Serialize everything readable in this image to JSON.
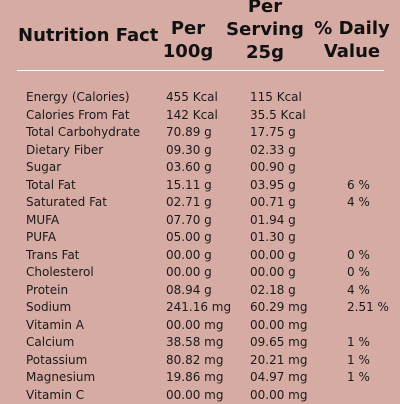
{
  "header": {
    "title": "Nutrition Fact",
    "per100_line1": "Per",
    "per100_line2": "100g",
    "serving_line1": "Per",
    "serving_line2": "Serving",
    "serving_line3": "25g",
    "daily_line1": "% Daily",
    "daily_line2": "Value"
  },
  "rows": [
    {
      "name": "Energy (Calories)",
      "per100": "455 Kcal",
      "serving": "115 Kcal",
      "daily": ""
    },
    {
      "name": "Calories From Fat",
      "per100": "142 Kcal",
      "serving": "35.5 Kcal",
      "daily": ""
    },
    {
      "name": "Total Carbohydrate",
      "per100": "70.89 g",
      "serving": "17.75 g",
      "daily": ""
    },
    {
      "name": "Dietary Fiber",
      "per100": "09.30 g",
      "serving": "02.33 g",
      "daily": ""
    },
    {
      "name": "Sugar",
      "per100": "03.60 g",
      "serving": "00.90 g",
      "daily": ""
    },
    {
      "name": "Total Fat",
      "per100": "15.11 g",
      "serving": "03.95 g",
      "daily": "6 %"
    },
    {
      "name": "Saturated Fat",
      "per100": "02.71 g",
      "serving": "00.71 g",
      "daily": "4 %"
    },
    {
      "name": "MUFA",
      "per100": "07.70 g",
      "serving": "01.94 g",
      "daily": ""
    },
    {
      "name": "PUFA",
      "per100": "05.00 g",
      "serving": "01.30 g",
      "daily": ""
    },
    {
      "name": "Trans Fat",
      "per100": "00.00 g",
      "serving": "00.00 g",
      "daily": "0 %"
    },
    {
      "name": "Cholesterol",
      "per100": "00.00 g",
      "serving": "00.00 g",
      "daily": "0 %"
    },
    {
      "name": "Protein",
      "per100": "08.94 g",
      "serving": "02.18 g",
      "daily": "4 %"
    },
    {
      "name": "Sodium",
      "per100": "241.16 mg",
      "serving": "60.29 mg",
      "daily": "2.51 %"
    },
    {
      "name": "Vitamin A",
      "per100": "00.00 mg",
      "serving": "00.00 mg",
      "daily": ""
    },
    {
      "name": "Calcium",
      "per100": "38.58 mg",
      "serving": "09.65 mg",
      "daily": "1 %"
    },
    {
      "name": "Potassium",
      "per100": "80.82 mg",
      "serving": "20.21 mg",
      "daily": "1 %"
    },
    {
      "name": "Magnesium",
      "per100": "19.86 mg",
      "serving": "04.97 mg",
      "daily": "1 %"
    },
    {
      "name": "Vitamin C",
      "per100": "00.00 mg",
      "serving": "00.00 mg",
      "daily": ""
    }
  ]
}
